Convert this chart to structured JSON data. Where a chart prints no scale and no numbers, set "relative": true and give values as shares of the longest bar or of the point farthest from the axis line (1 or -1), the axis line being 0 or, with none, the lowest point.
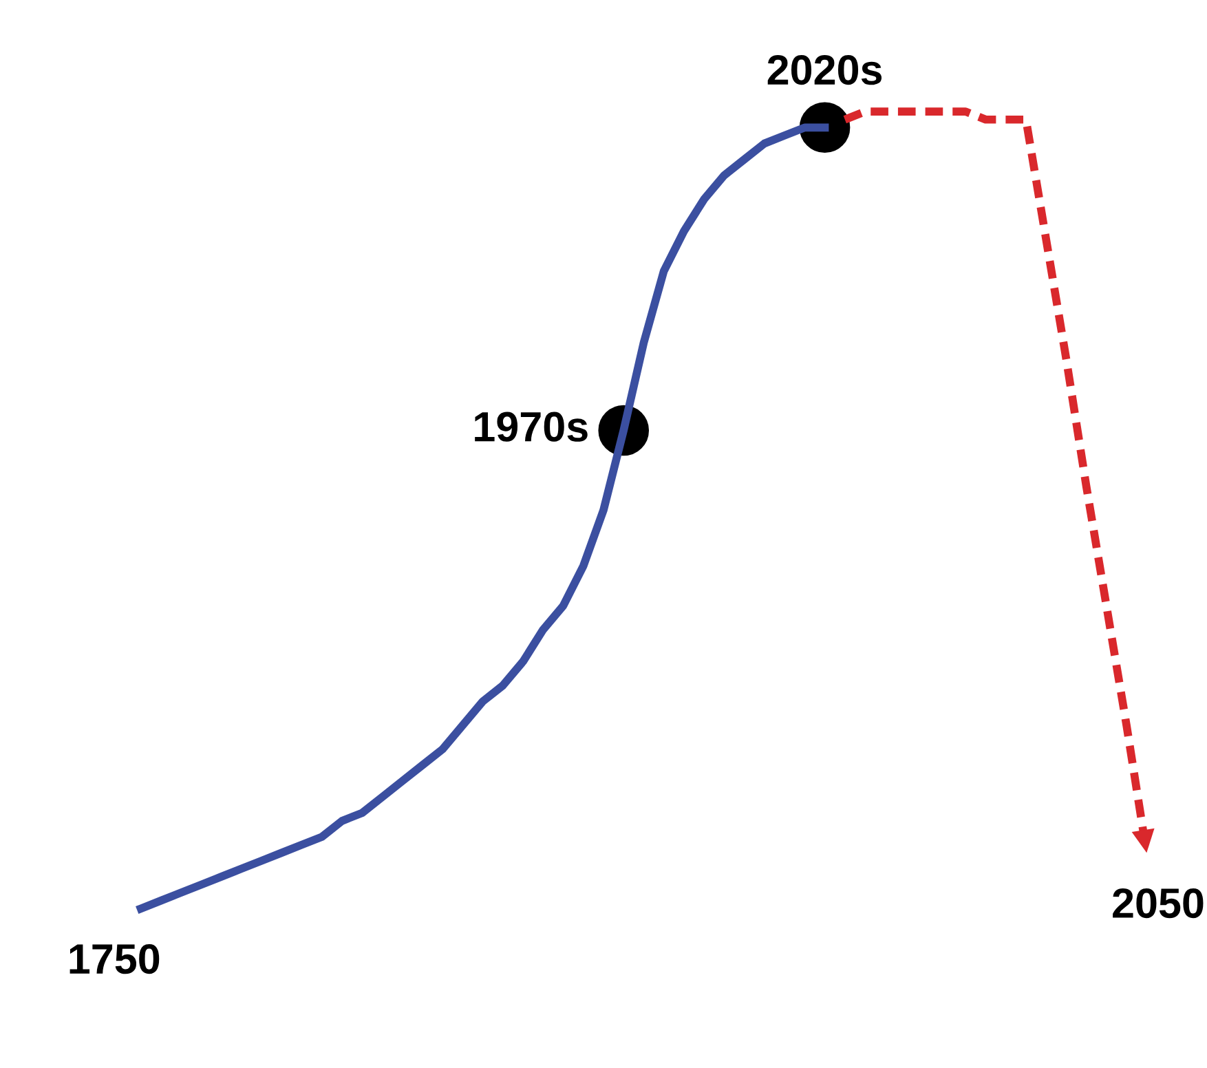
{
  "chart_data": {
    "type": "line",
    "relative": true,
    "categories": [
      null,
      null,
      null,
      null,
      null,
      null,
      null,
      null,
      null,
      null,
      null,
      null,
      null,
      null,
      null,
      null,
      null,
      null,
      null,
      null,
      null,
      null,
      null,
      null,
      null,
      null,
      null,
      null,
      null,
      null,
      null,
      null,
      null,
      null,
      null,
      null,
      null,
      null,
      null,
      null,
      null,
      null,
      null,
      null,
      null,
      null,
      null,
      null,
      null,
      null,
      null
    ],
    "series": [
      {
        "color": "#3b4fa0",
        "line_style": "solid",
        "values": [
          0,
          0.01,
          0.02,
          0.03,
          0.04,
          0.05,
          0.06,
          0.07,
          0.08,
          0.09,
          0.11,
          0.12,
          0.14,
          0.16,
          0.18,
          0.2,
          0.23,
          0.26,
          0.28,
          0.31,
          0.35,
          0.38,
          0.43,
          0.5,
          0.6,
          0.71,
          0.8,
          0.85,
          0.89,
          0.92,
          0.94,
          0.96,
          0.97,
          0.98,
          0.98,
          null,
          null,
          null,
          null,
          null,
          null,
          null,
          null,
          null,
          null,
          null,
          null,
          null,
          null,
          null,
          null
        ]
      },
      {
        "color": "#d9282c",
        "line_style": "dashed",
        "values": [
          null,
          null,
          null,
          null,
          null,
          null,
          null,
          null,
          null,
          null,
          null,
          null,
          null,
          null,
          null,
          null,
          null,
          null,
          null,
          null,
          null,
          null,
          null,
          null,
          null,
          null,
          null,
          null,
          null,
          null,
          null,
          null,
          null,
          null,
          null,
          0.99,
          1.0,
          1.0,
          1.0,
          1.0,
          1.0,
          1.0,
          0.99,
          0.99,
          0.99,
          0.84,
          0.69,
          0.53,
          0.38,
          0.23,
          0.07
        ]
      }
    ],
    "annotations": [
      "1750",
      "1970s",
      "2020s",
      "2050"
    ]
  }
}
